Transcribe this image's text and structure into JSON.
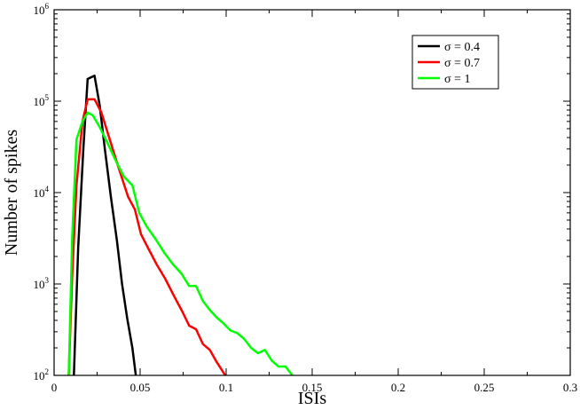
{
  "chart_data": {
    "type": "line",
    "xlabel": "ISIs",
    "ylabel": "Number of spikes",
    "xlim": [
      0,
      0.3
    ],
    "ylim": [
      100,
      1000000
    ],
    "yscale": "log",
    "grid": false,
    "legend_position": "top-right",
    "x_ticks": [
      {
        "value": 0,
        "label": "0"
      },
      {
        "value": 0.05,
        "label": "0.05"
      },
      {
        "value": 0.1,
        "label": "0.1"
      },
      {
        "value": 0.15,
        "label": "0.15"
      },
      {
        "value": 0.2,
        "label": "0.2"
      },
      {
        "value": 0.25,
        "label": "0.25"
      },
      {
        "value": 0.3,
        "label": "0.3"
      }
    ],
    "y_ticks": [
      {
        "value": 100,
        "base": "10",
        "exp": "2"
      },
      {
        "value": 1000,
        "base": "10",
        "exp": "3"
      },
      {
        "value": 10000,
        "base": "10",
        "exp": "4"
      },
      {
        "value": 100000,
        "base": "10",
        "exp": "5"
      },
      {
        "value": 1000000,
        "base": "10",
        "exp": "6"
      }
    ],
    "series": [
      {
        "name": "σ = 0.4",
        "color": "#000000",
        "points": [
          [
            0.0115,
            100
          ],
          [
            0.014,
            2500
          ],
          [
            0.017,
            30000
          ],
          [
            0.0195,
            175000
          ],
          [
            0.0235,
            190000
          ],
          [
            0.0265,
            90000
          ],
          [
            0.0295,
            30000
          ],
          [
            0.033,
            9000
          ],
          [
            0.0365,
            3000
          ],
          [
            0.0395,
            1000
          ],
          [
            0.0425,
            420
          ],
          [
            0.0455,
            200
          ],
          [
            0.0475,
            100
          ]
        ]
      },
      {
        "name": "σ = 0.7",
        "color": "#ff0000",
        "points": [
          [
            0.0085,
            100
          ],
          [
            0.0105,
            1200
          ],
          [
            0.013,
            12000
          ],
          [
            0.0165,
            60000
          ],
          [
            0.0195,
            105000
          ],
          [
            0.0235,
            105000
          ],
          [
            0.0275,
            75000
          ],
          [
            0.032,
            40000
          ],
          [
            0.037,
            20000
          ],
          [
            0.043,
            9000
          ],
          [
            0.047,
            6500
          ],
          [
            0.0505,
            3500
          ],
          [
            0.0545,
            2500
          ],
          [
            0.0595,
            1650
          ],
          [
            0.0645,
            1150
          ],
          [
            0.0695,
            750
          ],
          [
            0.0745,
            500
          ],
          [
            0.0785,
            350
          ],
          [
            0.0825,
            320
          ],
          [
            0.0865,
            220
          ],
          [
            0.0905,
            190
          ],
          [
            0.0945,
            140
          ],
          [
            0.0995,
            100
          ]
        ]
      },
      {
        "name": "σ = 1",
        "color": "#00ff00",
        "points": [
          [
            0.0085,
            100
          ],
          [
            0.0105,
            3200
          ],
          [
            0.013,
            38000
          ],
          [
            0.0165,
            60000
          ],
          [
            0.0195,
            75000
          ],
          [
            0.0225,
            70000
          ],
          [
            0.0265,
            52000
          ],
          [
            0.031,
            35000
          ],
          [
            0.036,
            22000
          ],
          [
            0.0405,
            15000
          ],
          [
            0.0455,
            12000
          ],
          [
            0.0495,
            6000
          ],
          [
            0.054,
            4200
          ],
          [
            0.059,
            3100
          ],
          [
            0.064,
            2200
          ],
          [
            0.069,
            1650
          ],
          [
            0.074,
            1300
          ],
          [
            0.0785,
            950
          ],
          [
            0.0825,
            950
          ],
          [
            0.0865,
            650
          ],
          [
            0.0905,
            520
          ],
          [
            0.0945,
            430
          ],
          [
            0.0985,
            370
          ],
          [
            0.1025,
            310
          ],
          [
            0.1065,
            290
          ],
          [
            0.1105,
            250
          ],
          [
            0.1145,
            200
          ],
          [
            0.1185,
            175
          ],
          [
            0.1225,
            190
          ],
          [
            0.1265,
            145
          ],
          [
            0.1305,
            125
          ],
          [
            0.1345,
            125
          ],
          [
            0.1385,
            100
          ]
        ]
      }
    ]
  }
}
